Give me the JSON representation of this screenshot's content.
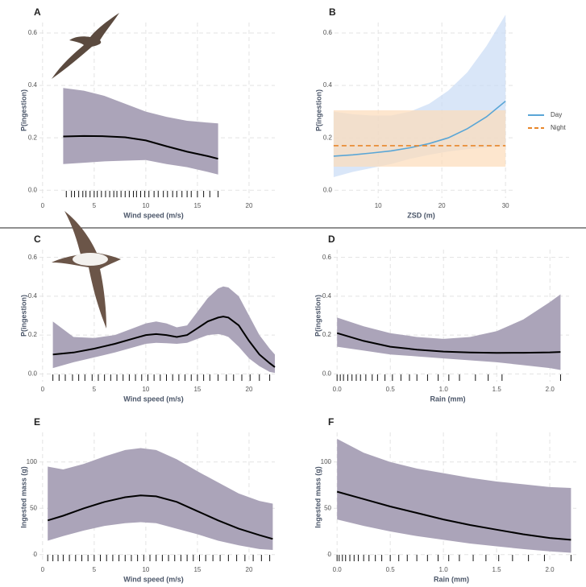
{
  "chart_data": [
    {
      "type": "line",
      "panel": "A",
      "ylabel": "P(ingestion)",
      "xlabel": "Wind speed (m/s)",
      "xlim": [
        -1,
        22.5
      ],
      "ylim": [
        -0.03,
        0.64
      ],
      "xticks": [
        0,
        5,
        10,
        15,
        20
      ],
      "yticks": [
        {
          "value": 0,
          "label": "0.0"
        },
        0.2,
        0.4,
        0.6
      ],
      "grid": true,
      "color": "#000000",
      "band_color": "#aba4b9",
      "x": [
        2,
        4,
        6,
        8,
        10,
        12,
        14,
        16,
        17
      ],
      "values": [
        0.205,
        0.207,
        0.206,
        0.202,
        0.19,
        0.168,
        0.147,
        0.13,
        0.12
      ],
      "lower": [
        0.1,
        0.105,
        0.11,
        0.113,
        0.115,
        0.1,
        0.088,
        0.07,
        0.06
      ],
      "upper": [
        0.39,
        0.38,
        0.36,
        0.33,
        0.3,
        0.28,
        0.265,
        0.258,
        0.255
      ],
      "rug": [
        2.3,
        2.8,
        3.1,
        3.5,
        3.9,
        4.2,
        4.6,
        5,
        5.3,
        5.7,
        6.1,
        6.5,
        6.9,
        7.2,
        7.6,
        8,
        8.4,
        8.8,
        9.1,
        9.5,
        9.9,
        10.3,
        10.8,
        11.2,
        11.7,
        12.1,
        12.6,
        13,
        13.5,
        14,
        14.4,
        15,
        15.6,
        16.2,
        17
      ]
    },
    {
      "type": "line",
      "panel": "B",
      "ylabel": "P(ingestion)",
      "xlabel": "ZSD (m)",
      "xlim": [
        2,
        31.5
      ],
      "ylim": [
        -0.03,
        0.64
      ],
      "xticks": [
        10,
        20,
        30
      ],
      "yticks": [
        {
          "value": 0,
          "label": "0.0"
        },
        0.2,
        0.4,
        0.6
      ],
      "grid": true,
      "x": [
        3,
        6,
        9,
        12,
        15,
        18,
        21,
        24,
        27,
        30
      ],
      "series": [
        {
          "name": "Day",
          "color": "#5aa6d6",
          "band_color": "#c9dcf5",
          "dash": false,
          "values": [
            0.13,
            0.135,
            0.142,
            0.15,
            0.162,
            0.178,
            0.2,
            0.235,
            0.28,
            0.34
          ],
          "lower": [
            0.05,
            0.07,
            0.085,
            0.1,
            0.12,
            0.135,
            0.148,
            0.157,
            0.163,
            0.168
          ],
          "upper": [
            0.3,
            0.29,
            0.285,
            0.285,
            0.3,
            0.33,
            0.38,
            0.45,
            0.55,
            0.67
          ]
        },
        {
          "name": "Night",
          "color": "#e8862a",
          "band_color": "#fcdcb9",
          "dash": true,
          "values": [
            0.17,
            0.17,
            0.17,
            0.17,
            0.17,
            0.17,
            0.17,
            0.17,
            0.17,
            0.17
          ],
          "lower": [
            0.09,
            0.09,
            0.09,
            0.09,
            0.09,
            0.09,
            0.09,
            0.09,
            0.09,
            0.09
          ],
          "upper": [
            0.305,
            0.305,
            0.305,
            0.305,
            0.305,
            0.305,
            0.305,
            0.305,
            0.305,
            0.305
          ]
        }
      ]
    },
    {
      "type": "line",
      "panel": "C",
      "ylabel": "P(ingestion)",
      "xlabel": "Wind speed (m/s)",
      "xlim": [
        -1,
        22.5
      ],
      "ylim": [
        -0.04,
        0.64
      ],
      "xticks": [
        0,
        5,
        10,
        15,
        20
      ],
      "yticks": [
        {
          "value": 0,
          "label": "0.0"
        },
        0.2,
        0.4,
        0.6
      ],
      "grid": true,
      "color": "#000000",
      "band_color": "#aba4b9",
      "x": [
        1,
        3,
        5,
        7,
        9,
        10,
        11,
        12,
        13,
        14,
        15,
        16,
        17,
        17.5,
        18,
        19,
        20,
        21,
        22,
        22.5
      ],
      "values": [
        0.1,
        0.11,
        0.13,
        0.155,
        0.185,
        0.2,
        0.205,
        0.2,
        0.19,
        0.2,
        0.235,
        0.27,
        0.29,
        0.295,
        0.29,
        0.25,
        0.17,
        0.1,
        0.055,
        0.035
      ],
      "lower": [
        0.03,
        0.06,
        0.085,
        0.11,
        0.14,
        0.155,
        0.16,
        0.158,
        0.155,
        0.16,
        0.18,
        0.2,
        0.205,
        0.2,
        0.19,
        0.14,
        0.08,
        0.04,
        0.01,
        0.005
      ],
      "upper": [
        0.27,
        0.19,
        0.185,
        0.2,
        0.24,
        0.26,
        0.27,
        0.26,
        0.24,
        0.25,
        0.32,
        0.39,
        0.44,
        0.45,
        0.445,
        0.4,
        0.3,
        0.2,
        0.13,
        0.1
      ],
      "rug": [
        1,
        1.6,
        2.2,
        2.9,
        3.5,
        4.1,
        4.8,
        5.4,
        6,
        6.6,
        7.2,
        7.8,
        8.4,
        9,
        9.6,
        10.2,
        10.8,
        11.4,
        12,
        12.6,
        13.2,
        13.8,
        14.4,
        15,
        15.6,
        16.2,
        17,
        17.8,
        18.5,
        19.3,
        20.1,
        21,
        22
      ]
    },
    {
      "type": "line",
      "panel": "D",
      "ylabel": "P(ingestion)",
      "xlabel": "Rain (mm)",
      "xlim": [
        -0.1,
        2.18
      ],
      "ylim": [
        -0.04,
        0.64
      ],
      "xticks": [
        {
          "value": 0,
          "label": "0.0"
        },
        0.5,
        {
          "value": 1,
          "label": "1.0"
        },
        1.5,
        {
          "value": 2,
          "label": "2.0"
        }
      ],
      "yticks": [
        {
          "value": 0,
          "label": "0.0"
        },
        0.2,
        0.4,
        0.6
      ],
      "grid": true,
      "color": "#000000",
      "band_color": "#aba4b9",
      "x": [
        0,
        0.25,
        0.5,
        0.75,
        1,
        1.25,
        1.5,
        1.75,
        2,
        2.1
      ],
      "values": [
        0.21,
        0.17,
        0.14,
        0.125,
        0.115,
        0.11,
        0.108,
        0.109,
        0.111,
        0.113
      ],
      "lower": [
        0.14,
        0.12,
        0.1,
        0.09,
        0.08,
        0.07,
        0.06,
        0.045,
        0.03,
        0.02
      ],
      "upper": [
        0.29,
        0.245,
        0.21,
        0.19,
        0.18,
        0.19,
        0.22,
        0.28,
        0.37,
        0.41
      ],
      "rug": [
        0,
        0.03,
        0.06,
        0.1,
        0.14,
        0.18,
        0.22,
        0.27,
        0.33,
        0.38,
        0.45,
        0.52,
        0.6,
        0.68,
        0.75,
        0.85,
        0.95,
        1.05,
        1.15,
        1.3,
        1.42,
        1.55,
        2.1
      ]
    },
    {
      "type": "line",
      "panel": "E",
      "ylabel": "Ingested mass (g)",
      "xlabel": "Wind speed (m/s)",
      "xlim": [
        -1,
        22.5
      ],
      "ylim": [
        -8,
        132
      ],
      "xticks": [
        0,
        5,
        10,
        15,
        20
      ],
      "yticks": [
        0,
        50,
        100
      ],
      "grid": true,
      "color": "#000000",
      "band_color": "#aba4b9",
      "x": [
        0.5,
        2,
        4,
        6,
        8,
        9.5,
        11,
        13,
        15,
        17,
        19,
        21,
        22.3
      ],
      "values": [
        37,
        42,
        50,
        57,
        62,
        64,
        63,
        57,
        47,
        37,
        28,
        21,
        17
      ],
      "lower": [
        15,
        20,
        26,
        31,
        34,
        35,
        34,
        28,
        22,
        15,
        10,
        6,
        5
      ],
      "upper": [
        95,
        92,
        98,
        106,
        113,
        115,
        113,
        103,
        90,
        78,
        66,
        58,
        55
      ],
      "rug": [
        0.5,
        1,
        1.5,
        2,
        2.6,
        3.2,
        3.8,
        4.4,
        5,
        5.6,
        6.2,
        6.8,
        7.4,
        8,
        8.6,
        9.2,
        9.8,
        10.4,
        11,
        11.6,
        12.2,
        12.8,
        13.4,
        14,
        14.6,
        15.2,
        15.8,
        16.5,
        17.2,
        18,
        18.8,
        19.6,
        20.4,
        21.2,
        22
      ]
    },
    {
      "type": "line",
      "panel": "F",
      "ylabel": "Ingested mass (g)",
      "xlabel": "Rain (mm)",
      "xlim": [
        -0.1,
        2.25
      ],
      "ylim": [
        -8,
        132
      ],
      "xticks": [
        {
          "value": 0,
          "label": "0.0"
        },
        0.5,
        {
          "value": 1,
          "label": "1.0"
        },
        1.5,
        {
          "value": 2,
          "label": "2.0"
        }
      ],
      "yticks": [
        0,
        50,
        100
      ],
      "grid": true,
      "color": "#000000",
      "band_color": "#aba4b9",
      "x": [
        0,
        0.25,
        0.5,
        0.75,
        1,
        1.25,
        1.5,
        1.75,
        2,
        2.2
      ],
      "values": [
        68,
        60,
        52,
        45,
        38,
        32,
        27,
        22,
        18,
        16
      ],
      "lower": [
        38,
        31,
        25,
        20,
        16,
        12,
        9,
        6,
        3.5,
        2
      ],
      "upper": [
        125,
        110,
        100,
        93,
        88,
        83,
        79,
        76,
        73,
        72
      ],
      "rug": [
        0,
        0.02,
        0.05,
        0.08,
        0.12,
        0.16,
        0.2,
        0.25,
        0.3,
        0.36,
        0.42,
        0.5,
        0.58,
        0.66,
        0.75,
        0.85,
        0.95,
        1.05,
        1.15,
        1.28,
        1.4,
        1.52,
        1.65,
        1.8,
        1.95,
        2.2
      ]
    }
  ]
}
